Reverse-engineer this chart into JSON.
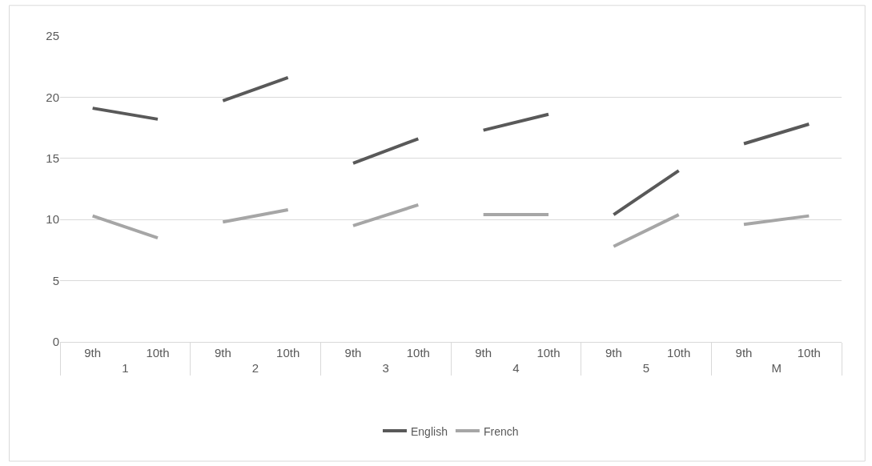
{
  "chart_data": {
    "type": "line",
    "categories": [
      "9th",
      "10th",
      "9th",
      "10th",
      "9th",
      "10th",
      "9th",
      "10th",
      "9th",
      "10th",
      "9th",
      "10th"
    ],
    "annotations": [
      "1",
      "2",
      "3",
      "4",
      "5",
      "M"
    ],
    "series": [
      {
        "name": "English",
        "color": "#595959",
        "values": [
          19.1,
          18.2,
          19.7,
          21.6,
          14.6,
          16.6,
          17.3,
          18.6,
          10.4,
          14.0,
          16.2,
          17.8
        ]
      },
      {
        "name": "French",
        "color": "#a6a6a6",
        "values": [
          10.3,
          8.5,
          9.8,
          10.8,
          9.5,
          11.2,
          10.4,
          10.4,
          7.8,
          10.4,
          9.6,
          10.3
        ]
      }
    ],
    "ylim": [
      0,
      25
    ],
    "yticks": [
      0,
      5,
      10,
      15,
      20,
      25
    ],
    "grid": "y",
    "legend": "bottom",
    "marker": "none",
    "line_style": "solid"
  }
}
